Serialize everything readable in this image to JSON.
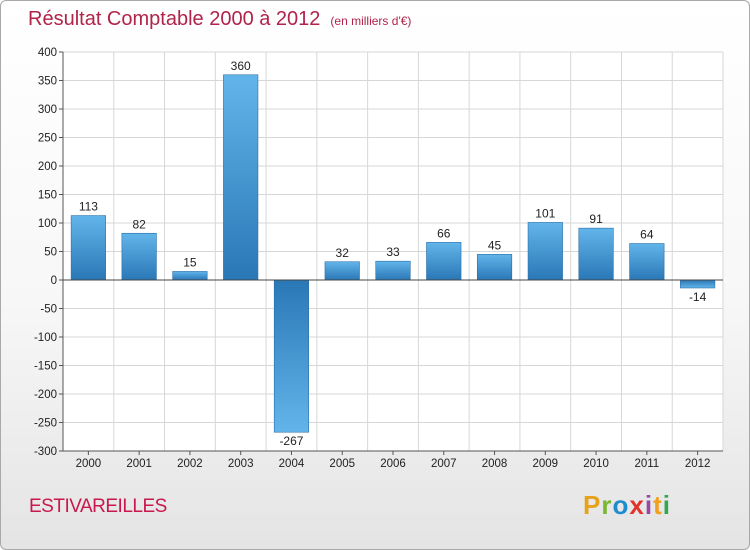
{
  "header": {
    "title": "Résultat Comptable 2000 à 2012",
    "unit": "(en milliers d'€)"
  },
  "footer": {
    "commune": "ESTIVAREILLES"
  },
  "logo": {
    "letters": [
      "P",
      "r",
      "o",
      "x",
      "i",
      "t",
      "i"
    ],
    "colors": [
      "#e5a21a",
      "#7ab62e",
      "#1f8ccf",
      "#e2332b",
      "#9a47a3",
      "#f0a01e",
      "#30a84f"
    ]
  },
  "colors": {
    "bar_light": "#5aaee6",
    "bar_dark": "#2a77b6",
    "grid": "#d7d7d7"
  },
  "chart_data": {
    "type": "bar",
    "title": "Résultat Comptable 2000 à 2012",
    "subtitle": "(en milliers d'€)",
    "xlabel": "",
    "ylabel": "",
    "categories": [
      "2000",
      "2001",
      "2002",
      "2003",
      "2004",
      "2005",
      "2006",
      "2007",
      "2008",
      "2009",
      "2010",
      "2011",
      "2012"
    ],
    "values": [
      113,
      82,
      15,
      360,
      -267,
      32,
      33,
      66,
      45,
      101,
      91,
      64,
      -14
    ],
    "ylim": [
      -300,
      400
    ],
    "yticks": [
      "400",
      "350",
      "300",
      "250",
      "200",
      "150",
      "100",
      "50",
      "0",
      "-50",
      "-100",
      "-150",
      "-200",
      "-250",
      "-300"
    ],
    "grid": true
  }
}
